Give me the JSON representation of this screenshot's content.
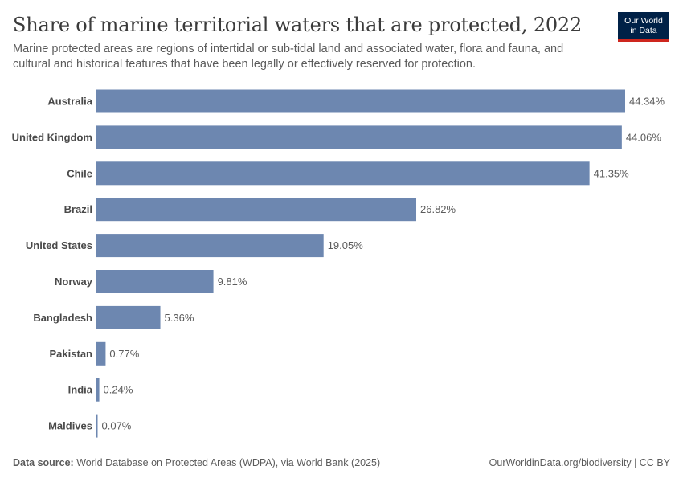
{
  "header": {
    "title": "Share of marine territorial waters that are protected, 2022",
    "subtitle": "Marine protected areas are regions of intertidal or sub-tidal land and associated water, flora and fauna, and cultural and historical features that have been legally or effectively reserved for protection.",
    "logo_line1": "Our World",
    "logo_line2": "in Data"
  },
  "footer": {
    "source_label": "Data source:",
    "source_text": "World Database on Protected Areas (WDPA), via World Bank (2025)",
    "url_license": "OurWorldinData.org/biodiversity | CC BY"
  },
  "colors": {
    "bar": "#6d87b0",
    "logo_bg": "#002147",
    "logo_accent": "#ce261e"
  },
  "chart_data": {
    "type": "bar",
    "orientation": "horizontal",
    "categories": [
      "Australia",
      "United Kingdom",
      "Chile",
      "Brazil",
      "United States",
      "Norway",
      "Bangladesh",
      "Pakistan",
      "India",
      "Maldives"
    ],
    "values": [
      44.34,
      44.06,
      41.35,
      26.82,
      19.05,
      9.81,
      5.36,
      0.77,
      0.24,
      0.07
    ],
    "value_labels": [
      "44.34%",
      "44.06%",
      "41.35%",
      "26.82%",
      "19.05%",
      "9.81%",
      "5.36%",
      "0.77%",
      "0.24%",
      "0.07%"
    ],
    "unit": "%",
    "xlim": [
      0,
      44.34
    ],
    "grid": false,
    "legend": false
  }
}
